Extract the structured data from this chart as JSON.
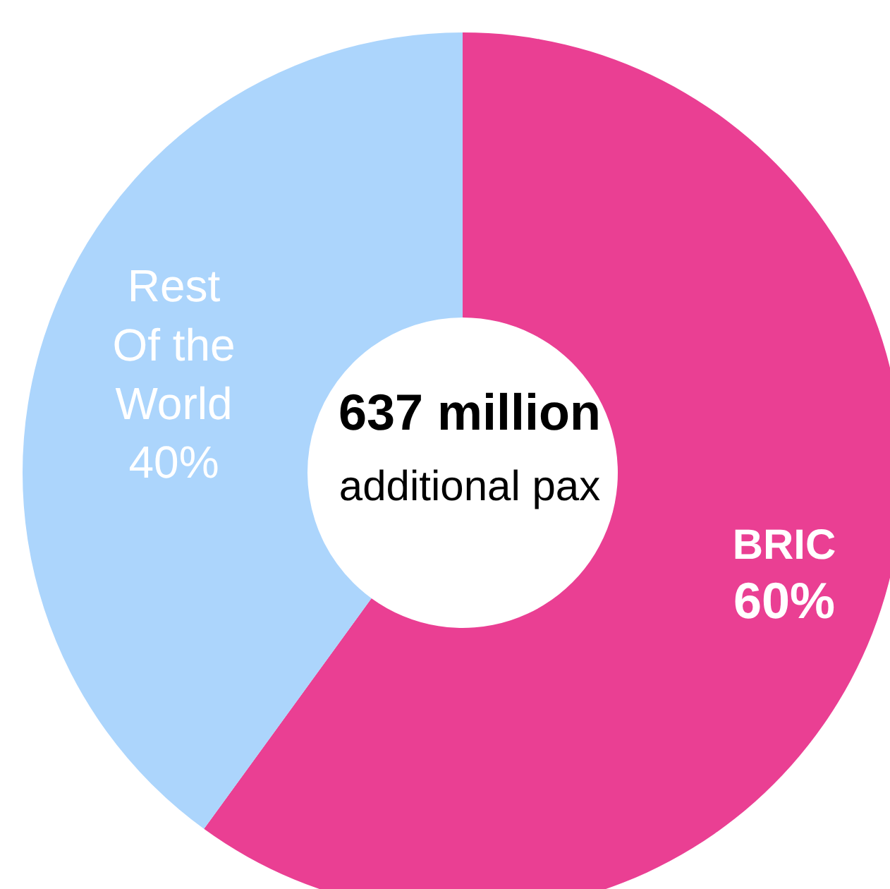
{
  "chart_data": {
    "type": "donut",
    "categories": [
      "BRIC",
      "Rest Of the World"
    ],
    "values": [
      60,
      40
    ],
    "colors": [
      "#ea3f93",
      "#acd5fc"
    ],
    "value_labels": [
      "60%",
      "40%"
    ],
    "annotations": [
      "637 million",
      "additional pax"
    ]
  }
}
